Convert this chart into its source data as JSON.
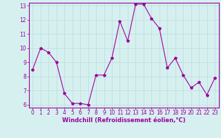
{
  "x": [
    0,
    1,
    2,
    3,
    4,
    5,
    6,
    7,
    8,
    9,
    10,
    11,
    12,
    13,
    14,
    15,
    16,
    17,
    18,
    19,
    20,
    21,
    22,
    23
  ],
  "y": [
    8.5,
    10.0,
    9.7,
    9.0,
    6.8,
    6.1,
    6.1,
    6.0,
    8.1,
    8.1,
    9.3,
    11.9,
    10.5,
    13.1,
    13.1,
    12.1,
    11.4,
    8.6,
    9.3,
    8.1,
    7.2,
    7.6,
    6.7,
    7.9
  ],
  "line_color": "#990099",
  "marker": "*",
  "marker_size": 3,
  "xlabel": "Windchill (Refroidissement éolien,°C)",
  "xlabel_fontsize": 6,
  "ylim": [
    5.8,
    13.2
  ],
  "xlim": [
    -0.5,
    23.5
  ],
  "yticks": [
    6,
    7,
    8,
    9,
    10,
    11,
    12,
    13
  ],
  "xticks": [
    0,
    1,
    2,
    3,
    4,
    5,
    6,
    7,
    8,
    9,
    10,
    11,
    12,
    13,
    14,
    15,
    16,
    17,
    18,
    19,
    20,
    21,
    22,
    23
  ],
  "tick_fontsize": 5.5,
  "background_color": "#d6f0f0",
  "grid_color": "#c0dede",
  "line_width": 0.8
}
